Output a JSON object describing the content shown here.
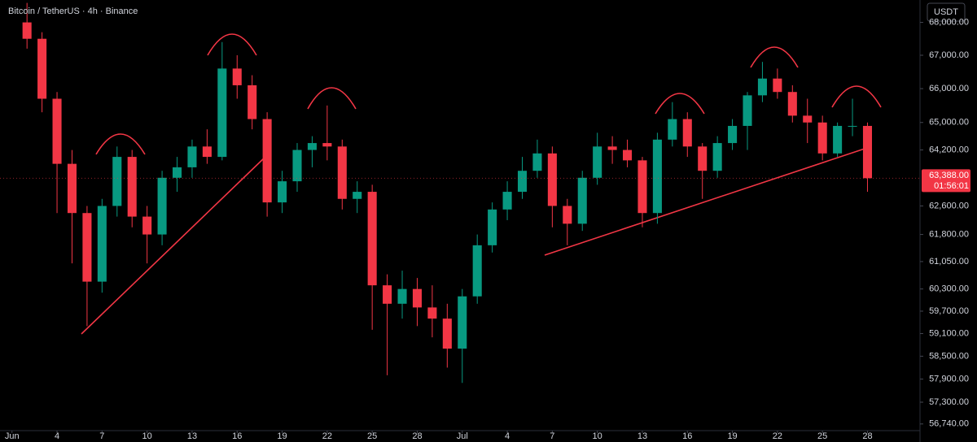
{
  "chart_data": {
    "type": "candlestick",
    "title": "Bitcoin / TetherUS · 4h · Binance",
    "currency": "USDT",
    "log_scale": true,
    "up_color": "#089981",
    "down_color": "#f23645",
    "x": [
      1,
      2,
      3,
      4,
      5,
      6,
      7,
      8,
      9,
      10,
      11,
      12,
      13,
      14,
      15,
      16,
      17,
      18,
      19,
      20,
      21,
      22,
      23,
      24,
      25,
      26,
      27,
      28,
      29,
      30,
      31,
      32,
      33,
      34,
      35,
      36,
      37,
      38,
      39,
      40,
      41,
      42,
      43,
      44,
      45,
      46,
      47,
      48,
      49,
      50,
      51,
      52,
      53,
      54,
      55,
      56,
      57
    ],
    "open": [
      68000,
      67500,
      65700,
      63800,
      62400,
      60500,
      62600,
      64000,
      62300,
      61800,
      63400,
      63700,
      64300,
      64000,
      66600,
      66100,
      65100,
      62700,
      63300,
      64200,
      64400,
      64300,
      62800,
      63000,
      60400,
      59900,
      60300,
      59800,
      59500,
      58700,
      60100,
      61500,
      62500,
      63000,
      63600,
      64100,
      62600,
      62100,
      63400,
      64300,
      64200,
      63900,
      62400,
      64500,
      65100,
      64300,
      63600,
      64400,
      64900,
      65800,
      66300,
      65900,
      65200,
      65000,
      64100,
      64900,
      64900
    ],
    "high": [
      68600,
      67700,
      65900,
      64200,
      62600,
      62800,
      64300,
      64200,
      62600,
      63600,
      64000,
      64500,
      64800,
      67400,
      67000,
      66400,
      65300,
      63600,
      64400,
      64600,
      65500,
      64500,
      63300,
      63200,
      60700,
      60800,
      60600,
      60400,
      59900,
      60300,
      61800,
      62700,
      63300,
      64000,
      64500,
      64300,
      62800,
      63600,
      64700,
      64600,
      64500,
      64000,
      64700,
      65600,
      65300,
      64400,
      64600,
      65100,
      65900,
      66800,
      66600,
      66100,
      65700,
      65200,
      65000,
      65700,
      65000
    ],
    "low": [
      67200,
      65300,
      62400,
      61000,
      59300,
      60200,
      62300,
      62000,
      61000,
      61500,
      63000,
      63400,
      63800,
      63900,
      65700,
      64800,
      62300,
      62400,
      63000,
      63700,
      63900,
      62500,
      62400,
      59200,
      58000,
      59500,
      59300,
      59000,
      58200,
      57800,
      59900,
      61300,
      62200,
      62800,
      63400,
      62000,
      61500,
      61900,
      63200,
      63800,
      63700,
      62000,
      62100,
      64300,
      64000,
      62800,
      63400,
      64200,
      64200,
      65600,
      65700,
      65000,
      64400,
      63900,
      64000,
      64600,
      63000
    ],
    "close": [
      67500,
      65700,
      63800,
      62400,
      60500,
      62600,
      64000,
      62300,
      61800,
      63400,
      63700,
      64300,
      64000,
      66600,
      66100,
      65100,
      62700,
      63300,
      64200,
      64400,
      64300,
      62800,
      63000,
      60400,
      59900,
      60300,
      59800,
      59500,
      58700,
      60100,
      61500,
      62500,
      63000,
      63600,
      64100,
      62600,
      62100,
      63400,
      64300,
      64200,
      63900,
      62400,
      64500,
      65100,
      64300,
      63600,
      64400,
      64900,
      65800,
      66300,
      65900,
      65200,
      65000,
      64100,
      64900,
      64900,
      63388
    ],
    "xlim": [
      -0.8,
      60.5
    ],
    "xticks": [
      {
        "value": 0,
        "label": "Jun"
      },
      {
        "value": 3,
        "label": "4"
      },
      {
        "value": 6,
        "label": "7"
      },
      {
        "value": 9,
        "label": "10"
      },
      {
        "value": 12,
        "label": "13"
      },
      {
        "value": 15,
        "label": "16"
      },
      {
        "value": 18,
        "label": "19"
      },
      {
        "value": 21,
        "label": "22"
      },
      {
        "value": 24,
        "label": "25"
      },
      {
        "value": 27,
        "label": "28"
      },
      {
        "value": 30,
        "label": "Jul"
      },
      {
        "value": 33,
        "label": "4"
      },
      {
        "value": 36,
        "label": "7"
      },
      {
        "value": 39,
        "label": "10"
      },
      {
        "value": 42,
        "label": "13"
      },
      {
        "value": 45,
        "label": "16"
      },
      {
        "value": 48,
        "label": "19"
      },
      {
        "value": 51,
        "label": "22"
      },
      {
        "value": 54,
        "label": "25"
      },
      {
        "value": 57,
        "label": "28"
      }
    ],
    "ylim": [
      56570,
      68690
    ],
    "yticks": [
      {
        "value": 68000,
        "label": "68,000.00"
      },
      {
        "value": 67000,
        "label": "67,000.00"
      },
      {
        "value": 66000,
        "label": "66,000.00"
      },
      {
        "value": 65000,
        "label": "65,000.00"
      },
      {
        "value": 64200,
        "label": "64,200.00"
      },
      {
        "value": 62600,
        "label": "62,600.00"
      },
      {
        "value": 61800,
        "label": "61,800.00"
      },
      {
        "value": 61050,
        "label": "61,050.00"
      },
      {
        "value": 60300,
        "label": "60,300.00"
      },
      {
        "value": 59700,
        "label": "59,700.00"
      },
      {
        "value": 59100,
        "label": "59,100.00"
      },
      {
        "value": 58500,
        "label": "58,500.00"
      },
      {
        "value": 57900,
        "label": "57,900.00"
      },
      {
        "value": 57300,
        "label": "57,300.00"
      },
      {
        "value": 56740,
        "label": "56,740.00"
      }
    ],
    "last_price": {
      "value": 63388,
      "label": "63,388.00"
    },
    "countdown": "01:56:01"
  }
}
